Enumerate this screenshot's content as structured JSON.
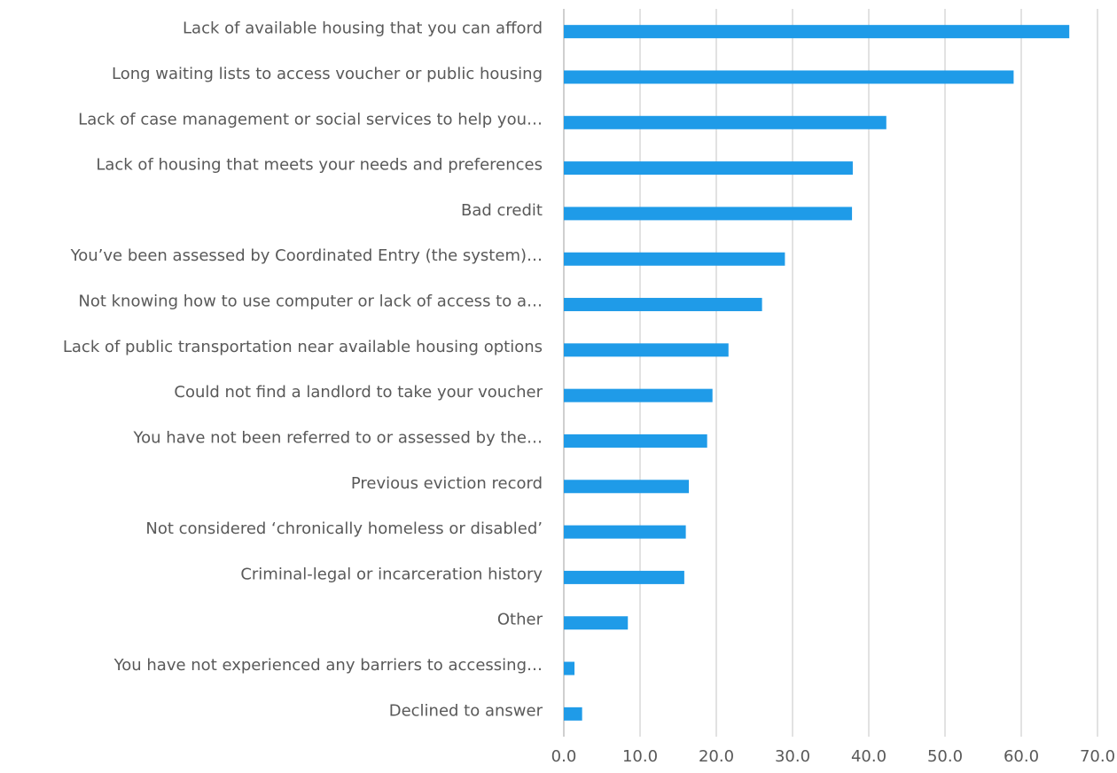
{
  "chart_data": {
    "type": "hbar",
    "categories": [
      "Lack of available housing that you can afford",
      "Long waiting lists to access voucher or public housing",
      "Lack of case management or social services to help you…",
      "Lack of housing that meets your needs and preferences",
      "Bad credit",
      "You’ve been assessed by Coordinated Entry (the system)…",
      "Not knowing how to use computer or lack of access to a…",
      "Lack of public transportation near available housing options",
      "Could not find a landlord to take your voucher",
      "You have not been referred to or assessed by the…",
      "Previous eviction record",
      "Not considered ‘chronically homeless or disabled’",
      "Criminal-legal or incarceration history",
      "Other",
      "You have not experienced any barriers to accessing…",
      "Declined to answer"
    ],
    "values": [
      66.3,
      59.0,
      42.3,
      37.9,
      37.8,
      29.0,
      26.0,
      21.6,
      19.5,
      18.8,
      16.4,
      16.0,
      15.8,
      8.4,
      1.4,
      2.4
    ],
    "color": "#1f9be8",
    "xlim": [
      0,
      70
    ],
    "xticks": [
      {
        "value": 0,
        "label": "0.0"
      },
      {
        "value": 10,
        "label": "10.0"
      },
      {
        "value": 20,
        "label": "20.0"
      },
      {
        "value": 30,
        "label": "30.0"
      },
      {
        "value": 40,
        "label": "40.0"
      },
      {
        "value": 50,
        "label": "50.0"
      },
      {
        "value": 60,
        "label": "60.0"
      },
      {
        "value": 70,
        "label": "70.0"
      }
    ],
    "grid": true
  }
}
